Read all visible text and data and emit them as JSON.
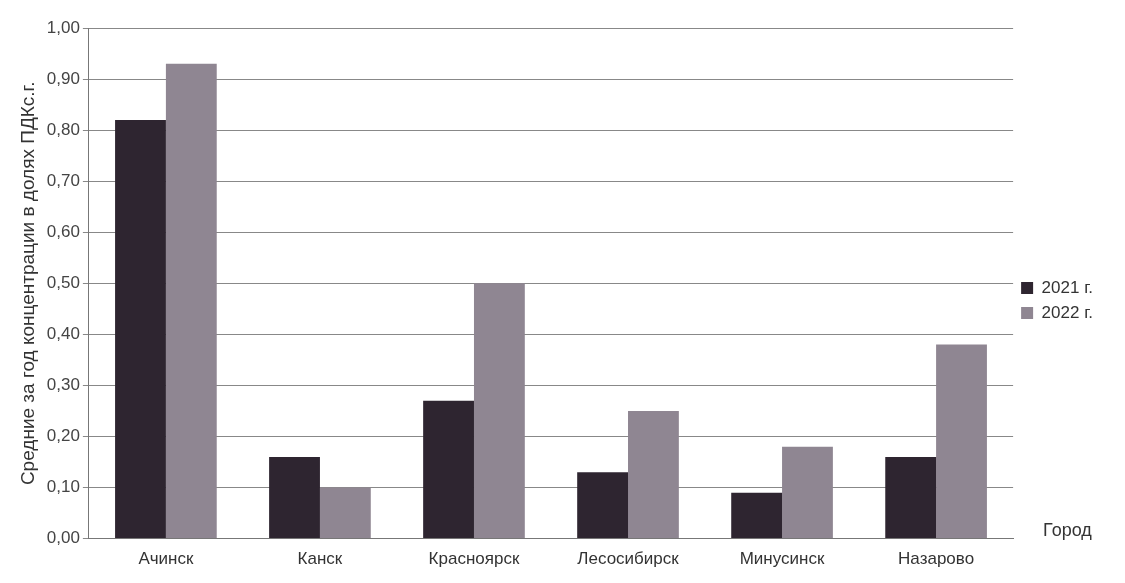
{
  "chart_data": {
    "type": "bar",
    "ylabel": "Средние за год концентрации в долях ПДКс.г.",
    "xlabel": "Город",
    "categories": [
      "Ачинск",
      "Канск",
      "Красноярск",
      "Лесосибирск",
      "Минусинск",
      "Назарово"
    ],
    "series": [
      {
        "name": "2021 г.",
        "color": "#2e2530",
        "values": [
          0.82,
          0.16,
          0.27,
          0.13,
          0.09,
          0.16
        ]
      },
      {
        "name": "2022 г.",
        "color": "#8f8692",
        "values": [
          0.93,
          0.1,
          0.5,
          0.25,
          0.18,
          0.38
        ]
      }
    ],
    "ylim": [
      0,
      1
    ],
    "yticks": [
      {
        "value": 0,
        "label": "0,00"
      },
      {
        "value": 0.1,
        "label": "0,10"
      },
      {
        "value": 0.2,
        "label": "0,20"
      },
      {
        "value": 0.3,
        "label": "0,30"
      },
      {
        "value": 0.4,
        "label": "0,40"
      },
      {
        "value": 0.5,
        "label": "0,50"
      },
      {
        "value": 0.6,
        "label": "0,60"
      },
      {
        "value": 0.7,
        "label": "0,70"
      },
      {
        "value": 0.8,
        "label": "0,80"
      },
      {
        "value": 0.9,
        "label": "0,90"
      },
      {
        "value": 1,
        "label": "1,00"
      }
    ],
    "grid": "y",
    "legend": "right"
  }
}
